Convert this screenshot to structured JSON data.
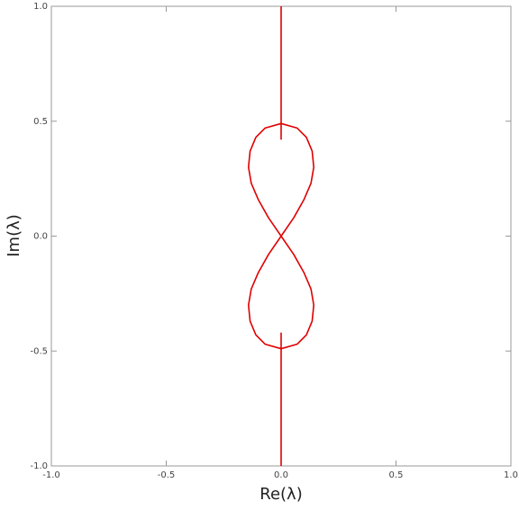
{
  "chart_data": {
    "type": "line",
    "x_label": "Re(λ)",
    "y_label": "Im(λ)",
    "xlim": [
      -1,
      1
    ],
    "ylim": [
      -1,
      1
    ],
    "xticks": [
      {
        "value": -1,
        "label": "-1.0"
      },
      {
        "value": -0.5,
        "label": "-0.5"
      },
      {
        "value": 0,
        "label": "0.0"
      },
      {
        "value": 0.5,
        "label": "0.5"
      },
      {
        "value": 1,
        "label": "1.0"
      }
    ],
    "yticks": [
      {
        "value": -1,
        "label": "-1.0"
      },
      {
        "value": -0.5,
        "label": "-0.5"
      },
      {
        "value": 0,
        "label": "0.0"
      },
      {
        "value": 0.5,
        "label": "0.5"
      },
      {
        "value": 1,
        "label": "1.0"
      }
    ],
    "series": [
      {
        "color": "#e00000",
        "x": [
          0,
          0
        ],
        "values": [
          1,
          0.42
        ]
      },
      {
        "color": "#e00000",
        "x": [
          0,
          0.07,
          0.11,
          0.135,
          0.142,
          0.13,
          0.1,
          0.055,
          0,
          -0.055,
          -0.1,
          -0.13,
          -0.142,
          -0.135,
          -0.11,
          -0.07,
          0,
          0.07,
          0.11,
          0.135,
          0.142,
          0.13,
          0.1,
          0.055,
          0,
          -0.055,
          -0.1,
          -0.13,
          -0.142,
          -0.135,
          -0.11,
          -0.07,
          0
        ],
        "values": [
          0.49,
          0.47,
          0.43,
          0.37,
          0.3,
          0.23,
          0.16,
          0.08,
          0,
          -0.08,
          -0.16,
          -0.23,
          -0.3,
          -0.37,
          -0.43,
          -0.47,
          -0.49,
          -0.47,
          -0.43,
          -0.37,
          -0.3,
          -0.23,
          -0.16,
          -0.08,
          0,
          0.08,
          0.16,
          0.23,
          0.3,
          0.37,
          0.43,
          0.47,
          0.49
        ]
      },
      {
        "color": "#e00000",
        "x": [
          0,
          0
        ],
        "values": [
          -0.42,
          -1
        ]
      }
    ]
  }
}
